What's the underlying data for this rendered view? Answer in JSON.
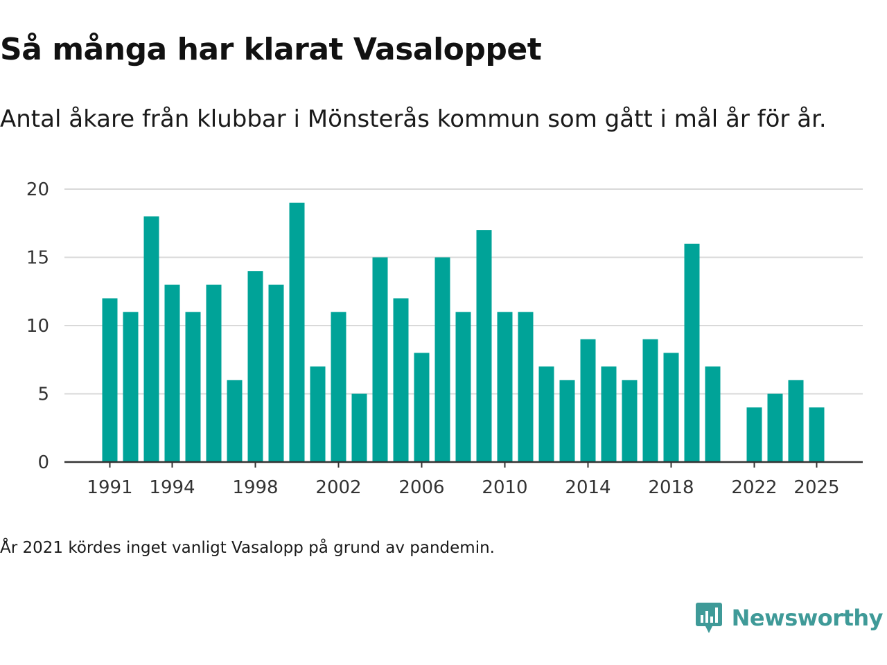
{
  "title": "Så många har klarat Vasaloppet",
  "subtitle": "Antal åkare från klubbar i Mönsterås kommun som gått i mål år för år.",
  "note": "År 2021 kördes inget vanligt Vasalopp på grund av pandemin.",
  "brand": {
    "name": "Newsworthy",
    "color": "#3f9a98"
  },
  "colors": {
    "bar": "#00a398",
    "grid": "#d9d9d9",
    "axis": "#333333"
  },
  "chart_data": {
    "type": "bar",
    "title": "Så många har klarat Vasaloppet",
    "xlabel": "",
    "ylabel": "",
    "ylim": [
      0,
      20
    ],
    "yticks": [
      0,
      5,
      10,
      15,
      20
    ],
    "xticks": [
      1991,
      1994,
      1998,
      2002,
      2006,
      2010,
      2014,
      2018,
      2022,
      2025
    ],
    "grid": true,
    "categories": [
      1991,
      1992,
      1993,
      1994,
      1995,
      1996,
      1997,
      1998,
      1999,
      2000,
      2001,
      2002,
      2003,
      2004,
      2005,
      2006,
      2007,
      2008,
      2009,
      2010,
      2011,
      2012,
      2013,
      2014,
      2015,
      2016,
      2017,
      2018,
      2019,
      2020,
      2021,
      2022,
      2023,
      2024,
      2025
    ],
    "values": [
      12,
      11,
      18,
      13,
      11,
      13,
      6,
      14,
      13,
      19,
      7,
      11,
      5,
      15,
      12,
      8,
      15,
      11,
      17,
      11,
      11,
      7,
      6,
      9,
      7,
      6,
      9,
      8,
      16,
      7,
      null,
      4,
      5,
      6,
      4
    ]
  }
}
